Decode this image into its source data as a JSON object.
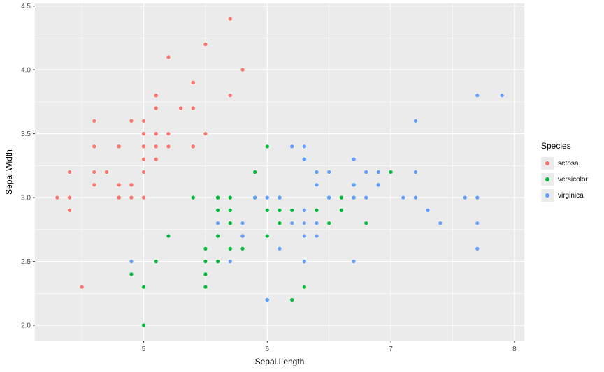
{
  "chart_data": {
    "type": "scatter",
    "title": "",
    "xlabel": "Sepal.Length",
    "ylabel": "Sepal.Width",
    "legend_title": "Species",
    "legend_position": "right",
    "panel_background": "#EBEBEB",
    "gridline_color": "#FFFFFF",
    "tick_mark_color": "#333333",
    "tick_label_color": "#4D4D4D",
    "x_axis": {
      "range": [
        4.12,
        8.08
      ],
      "major_ticks": [
        5,
        6,
        7,
        8
      ],
      "minor_ticks": [
        4.5,
        5.5,
        6.5,
        7.5
      ],
      "tick_labels": [
        "5",
        "6",
        "7",
        "8"
      ]
    },
    "y_axis": {
      "range": [
        1.88,
        4.52
      ],
      "major_ticks": [
        2.0,
        2.5,
        3.0,
        3.5,
        4.0,
        4.5
      ],
      "minor_ticks": [
        2.25,
        2.75,
        3.25,
        3.75,
        4.25
      ],
      "tick_labels": [
        "2.0",
        "2.5",
        "3.0",
        "3.5",
        "4.0",
        "4.5"
      ]
    },
    "series": [
      {
        "name": "setosa",
        "color": "#F8766D",
        "points": [
          [
            5.1,
            3.5
          ],
          [
            4.9,
            3.0
          ],
          [
            4.7,
            3.2
          ],
          [
            4.6,
            3.1
          ],
          [
            5.0,
            3.6
          ],
          [
            5.4,
            3.9
          ],
          [
            4.6,
            3.4
          ],
          [
            5.0,
            3.4
          ],
          [
            4.4,
            2.9
          ],
          [
            4.9,
            3.1
          ],
          [
            5.4,
            3.7
          ],
          [
            4.8,
            3.4
          ],
          [
            4.8,
            3.0
          ],
          [
            4.3,
            3.0
          ],
          [
            5.8,
            4.0
          ],
          [
            5.7,
            4.4
          ],
          [
            5.4,
            3.9
          ],
          [
            5.1,
            3.5
          ],
          [
            5.7,
            3.8
          ],
          [
            5.1,
            3.8
          ],
          [
            5.4,
            3.4
          ],
          [
            5.1,
            3.7
          ],
          [
            4.6,
            3.6
          ],
          [
            5.1,
            3.3
          ],
          [
            4.8,
            3.4
          ],
          [
            5.0,
            3.0
          ],
          [
            5.0,
            3.4
          ],
          [
            5.2,
            3.5
          ],
          [
            5.2,
            3.4
          ],
          [
            4.7,
            3.2
          ],
          [
            4.8,
            3.1
          ],
          [
            5.4,
            3.4
          ],
          [
            5.2,
            4.1
          ],
          [
            5.5,
            4.2
          ],
          [
            4.9,
            3.1
          ],
          [
            5.0,
            3.2
          ],
          [
            5.5,
            3.5
          ],
          [
            4.9,
            3.6
          ],
          [
            4.4,
            3.0
          ],
          [
            5.1,
            3.4
          ],
          [
            5.0,
            3.5
          ],
          [
            4.5,
            2.3
          ],
          [
            4.4,
            3.2
          ],
          [
            5.0,
            3.5
          ],
          [
            5.1,
            3.8
          ],
          [
            4.8,
            3.0
          ],
          [
            5.1,
            3.8
          ],
          [
            4.6,
            3.2
          ],
          [
            5.3,
            3.7
          ],
          [
            5.0,
            3.3
          ]
        ]
      },
      {
        "name": "versicolor",
        "color": "#00BA38",
        "points": [
          [
            7.0,
            3.2
          ],
          [
            6.4,
            3.2
          ],
          [
            6.9,
            3.1
          ],
          [
            5.5,
            2.3
          ],
          [
            6.5,
            2.8
          ],
          [
            5.7,
            2.8
          ],
          [
            6.3,
            3.3
          ],
          [
            4.9,
            2.4
          ],
          [
            6.6,
            2.9
          ],
          [
            5.2,
            2.7
          ],
          [
            5.0,
            2.0
          ],
          [
            5.9,
            3.0
          ],
          [
            6.0,
            2.2
          ],
          [
            6.1,
            2.9
          ],
          [
            5.6,
            2.9
          ],
          [
            6.7,
            3.1
          ],
          [
            5.6,
            3.0
          ],
          [
            5.8,
            2.7
          ],
          [
            6.2,
            2.2
          ],
          [
            5.6,
            2.5
          ],
          [
            5.9,
            3.2
          ],
          [
            6.1,
            2.8
          ],
          [
            6.3,
            2.5
          ],
          [
            6.1,
            2.8
          ],
          [
            6.4,
            2.9
          ],
          [
            6.6,
            3.0
          ],
          [
            6.8,
            2.8
          ],
          [
            6.7,
            3.0
          ],
          [
            6.0,
            2.9
          ],
          [
            5.7,
            2.6
          ],
          [
            5.5,
            2.4
          ],
          [
            5.5,
            2.4
          ],
          [
            5.8,
            2.7
          ],
          [
            6.0,
            2.7
          ],
          [
            5.4,
            3.0
          ],
          [
            6.0,
            3.4
          ],
          [
            6.7,
            3.1
          ],
          [
            6.3,
            2.3
          ],
          [
            5.6,
            3.0
          ],
          [
            5.5,
            2.5
          ],
          [
            5.5,
            2.6
          ],
          [
            6.1,
            3.0
          ],
          [
            5.8,
            2.6
          ],
          [
            5.0,
            2.3
          ],
          [
            5.6,
            2.7
          ],
          [
            5.7,
            3.0
          ],
          [
            5.7,
            2.9
          ],
          [
            6.2,
            2.9
          ],
          [
            5.1,
            2.5
          ],
          [
            5.7,
            2.8
          ]
        ]
      },
      {
        "name": "virginica",
        "color": "#619CFF",
        "points": [
          [
            6.3,
            3.3
          ],
          [
            5.8,
            2.7
          ],
          [
            7.1,
            3.0
          ],
          [
            6.3,
            2.9
          ],
          [
            6.5,
            3.0
          ],
          [
            7.6,
            3.0
          ],
          [
            4.9,
            2.5
          ],
          [
            7.3,
            2.9
          ],
          [
            6.7,
            2.5
          ],
          [
            7.2,
            3.6
          ],
          [
            6.5,
            3.2
          ],
          [
            6.4,
            2.7
          ],
          [
            6.8,
            3.0
          ],
          [
            5.7,
            2.5
          ],
          [
            5.8,
            2.8
          ],
          [
            6.4,
            3.2
          ],
          [
            6.5,
            3.0
          ],
          [
            7.7,
            3.8
          ],
          [
            7.7,
            2.6
          ],
          [
            6.0,
            2.2
          ],
          [
            6.9,
            3.2
          ],
          [
            5.6,
            2.8
          ],
          [
            7.7,
            2.8
          ],
          [
            6.3,
            2.7
          ],
          [
            6.7,
            3.3
          ],
          [
            7.2,
            3.2
          ],
          [
            6.2,
            2.8
          ],
          [
            6.1,
            3.0
          ],
          [
            6.4,
            2.8
          ],
          [
            7.2,
            3.0
          ],
          [
            7.4,
            2.8
          ],
          [
            7.9,
            3.8
          ],
          [
            6.4,
            2.8
          ],
          [
            6.3,
            2.8
          ],
          [
            6.1,
            2.6
          ],
          [
            7.7,
            3.0
          ],
          [
            6.3,
            3.4
          ],
          [
            6.4,
            3.1
          ],
          [
            6.0,
            3.0
          ],
          [
            6.9,
            3.1
          ],
          [
            6.7,
            3.1
          ],
          [
            6.9,
            3.1
          ],
          [
            5.8,
            2.7
          ],
          [
            6.8,
            3.2
          ],
          [
            6.7,
            3.3
          ],
          [
            6.7,
            3.0
          ],
          [
            6.3,
            2.5
          ],
          [
            6.5,
            3.0
          ],
          [
            6.2,
            3.4
          ],
          [
            5.9,
            3.0
          ]
        ]
      }
    ]
  }
}
